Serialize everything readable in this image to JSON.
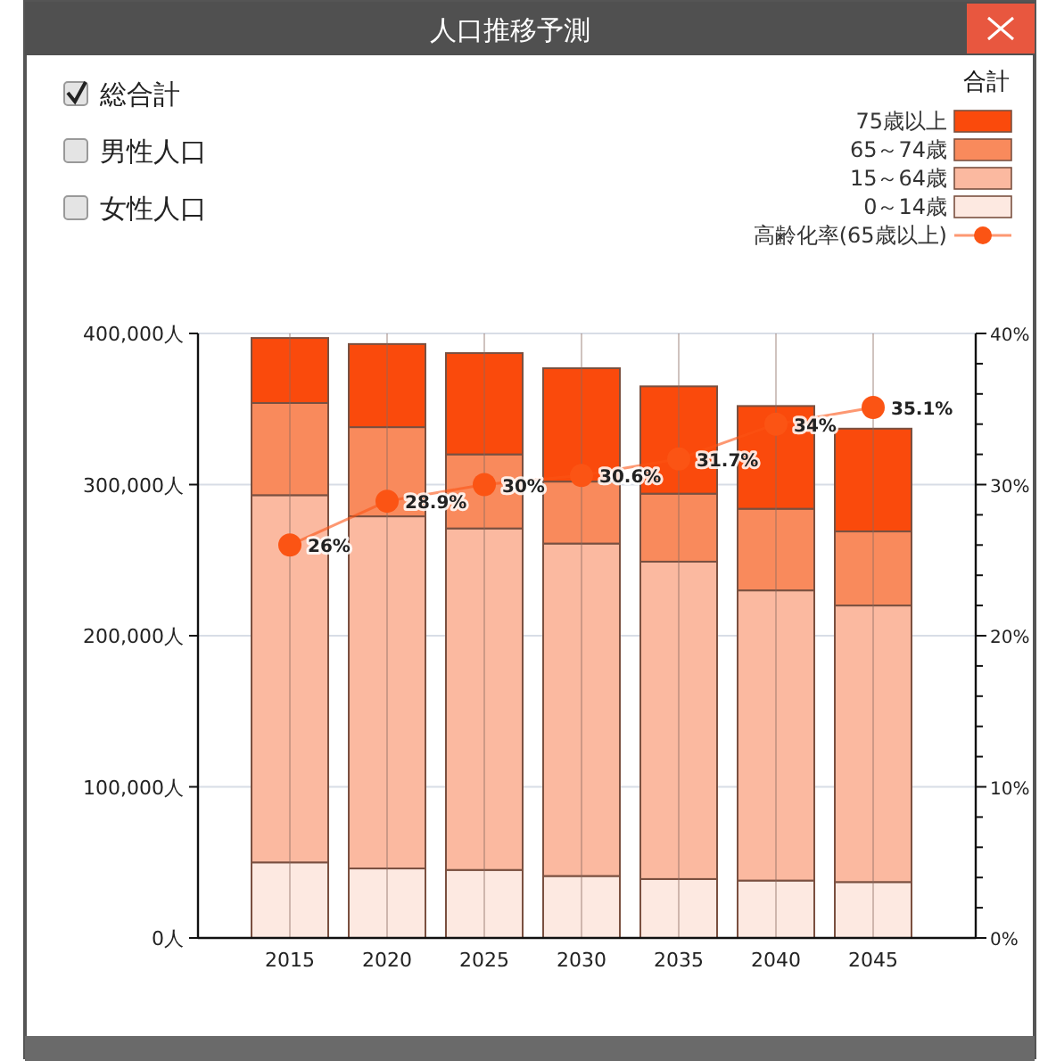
{
  "chart_data": {
    "type": "bar",
    "title": "人口推移予測",
    "stacked": true,
    "legend_title": "合計",
    "legend": "top right",
    "grid": true,
    "marker": "circle",
    "annotations": [
      "総合計",
      "男性人口",
      "女性人口"
    ],
    "categories": [
      "2015",
      "2020",
      "2025",
      "2030",
      "2035",
      "2040",
      "2045"
    ],
    "ylim": [
      0,
      400000
    ],
    "yticks": [
      {
        "value": 0,
        "label": "0人"
      },
      {
        "value": 100000,
        "label": "100,000人"
      },
      {
        "value": 200000,
        "label": "200,000人"
      },
      {
        "value": 300000,
        "label": "300,000人"
      },
      {
        "value": 400000,
        "label": "400,000人"
      }
    ],
    "y2lim": [
      0,
      40
    ],
    "y2ticks": [
      {
        "value": 0,
        "label": "0%"
      },
      {
        "value": 2,
        "label": null
      },
      {
        "value": 4,
        "label": null
      },
      {
        "value": 6,
        "label": null
      },
      {
        "value": 8,
        "label": null
      },
      {
        "value": 10,
        "label": "10%"
      },
      {
        "value": 12,
        "label": null
      },
      {
        "value": 14,
        "label": null
      },
      {
        "value": 16,
        "label": null
      },
      {
        "value": 18,
        "label": null
      },
      {
        "value": 20,
        "label": "20%"
      },
      {
        "value": 22,
        "label": null
      },
      {
        "value": 24,
        "label": null
      },
      {
        "value": 26,
        "label": null
      },
      {
        "value": 28,
        "label": null
      },
      {
        "value": 30,
        "label": "30%"
      },
      {
        "value": 32,
        "label": null
      },
      {
        "value": 34,
        "label": null
      },
      {
        "value": 36,
        "label": null
      },
      {
        "value": 38,
        "label": null
      },
      {
        "value": 40,
        "label": "40%"
      }
    ],
    "series": [
      {
        "name": "0～14歳",
        "color": "#fde9e1",
        "values": [
          50000,
          46000,
          45000,
          41000,
          39000,
          38000,
          37000
        ]
      },
      {
        "name": "15～64歳",
        "color": "#fbb9a0",
        "values": [
          243000,
          233000,
          226000,
          220000,
          210000,
          192000,
          183000
        ]
      },
      {
        "name": "65～74歳",
        "color": "#f98a5c",
        "values": [
          61000,
          59000,
          49000,
          41000,
          45000,
          54000,
          49000
        ]
      },
      {
        "name": "75歳以上",
        "color": "#fa4a0c",
        "values": [
          43000,
          55000,
          67000,
          75000,
          71000,
          68000,
          68000
        ]
      },
      {
        "name": "高齢化率(65歳以上)",
        "type": "line",
        "axis": "y2",
        "color": "#fb5414",
        "values": [
          26,
          28.9,
          30,
          30.6,
          31.7,
          34,
          35.1
        ],
        "value_labels": [
          "26%",
          "28.9%",
          "30%",
          "30.6%",
          "31.7%",
          "34%",
          "35.1%"
        ]
      }
    ]
  }
}
